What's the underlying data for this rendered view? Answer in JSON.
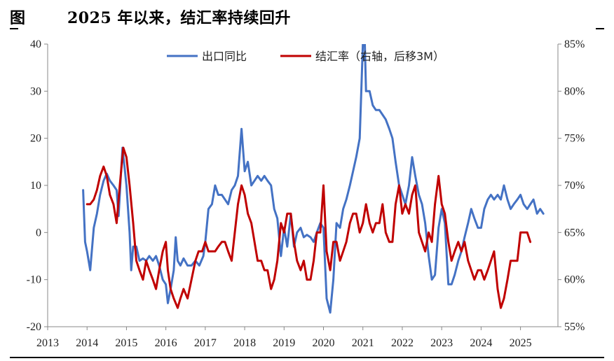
{
  "header": {
    "figure_label": "图",
    "title": "2025 年以来，结汇率持续回升"
  },
  "colors": {
    "series1": "#4472C4",
    "series2": "#C00000",
    "axis": "#888888",
    "text": "#222222"
  },
  "chart_data": {
    "type": "line",
    "title": "2025 年以来，结汇率持续回升",
    "x_ticks": [
      "2013",
      "2014",
      "2015",
      "2016",
      "2017",
      "2018",
      "2019",
      "2020",
      "2021",
      "2022",
      "2023",
      "2024",
      "2025"
    ],
    "xlim": [
      2013.0,
      2025.95
    ],
    "y_left": {
      "lim": [
        -20,
        40
      ],
      "ticks": [
        "40",
        "30",
        "20",
        "10",
        "0",
        "-10",
        "-20"
      ]
    },
    "y_right": {
      "lim": [
        55,
        85
      ],
      "ticks": [
        "85%",
        "80%",
        "75%",
        "70%",
        "65%",
        "60%",
        "55%"
      ]
    },
    "grid": false,
    "legend": "top-center",
    "series": [
      {
        "name": "出口同比",
        "axis": "left",
        "color": "#4472C4",
        "points": [
          [
            2013.9,
            9
          ],
          [
            2013.95,
            -2
          ],
          [
            2014.0,
            -4
          ],
          [
            2014.08,
            -8
          ],
          [
            2014.17,
            1
          ],
          [
            2014.25,
            4
          ],
          [
            2014.33,
            8
          ],
          [
            2014.42,
            11
          ],
          [
            2014.5,
            12.5
          ],
          [
            2014.58,
            11
          ],
          [
            2014.67,
            10
          ],
          [
            2014.75,
            9
          ],
          [
            2014.8,
            3.5
          ],
          [
            2014.85,
            11
          ],
          [
            2014.9,
            18
          ],
          [
            2014.95,
            14
          ],
          [
            2015.0,
            10
          ],
          [
            2015.08,
            0
          ],
          [
            2015.12,
            -8
          ],
          [
            2015.17,
            -3
          ],
          [
            2015.25,
            -3
          ],
          [
            2015.33,
            -6
          ],
          [
            2015.42,
            -5.5
          ],
          [
            2015.5,
            -6
          ],
          [
            2015.58,
            -5
          ],
          [
            2015.67,
            -6
          ],
          [
            2015.75,
            -5
          ],
          [
            2015.83,
            -7
          ],
          [
            2015.92,
            -10
          ],
          [
            2016.0,
            -11
          ],
          [
            2016.05,
            -15
          ],
          [
            2016.12,
            -12
          ],
          [
            2016.2,
            -8
          ],
          [
            2016.25,
            -1
          ],
          [
            2016.3,
            -6
          ],
          [
            2016.37,
            -7
          ],
          [
            2016.45,
            -5.5
          ],
          [
            2016.55,
            -7
          ],
          [
            2016.65,
            -7
          ],
          [
            2016.75,
            -6
          ],
          [
            2016.85,
            -7
          ],
          [
            2016.95,
            -5
          ],
          [
            2017.0,
            -2
          ],
          [
            2017.08,
            5
          ],
          [
            2017.17,
            6
          ],
          [
            2017.25,
            10
          ],
          [
            2017.33,
            8
          ],
          [
            2017.42,
            8
          ],
          [
            2017.5,
            7
          ],
          [
            2017.58,
            6
          ],
          [
            2017.67,
            9
          ],
          [
            2017.75,
            10
          ],
          [
            2017.83,
            12
          ],
          [
            2017.92,
            22
          ],
          [
            2018.0,
            13
          ],
          [
            2018.08,
            15
          ],
          [
            2018.17,
            10
          ],
          [
            2018.25,
            11
          ],
          [
            2018.33,
            12
          ],
          [
            2018.42,
            11
          ],
          [
            2018.5,
            12
          ],
          [
            2018.58,
            11
          ],
          [
            2018.67,
            10
          ],
          [
            2018.75,
            5
          ],
          [
            2018.83,
            3
          ],
          [
            2018.92,
            -5
          ],
          [
            2019.0,
            1
          ],
          [
            2019.08,
            -3
          ],
          [
            2019.17,
            4
          ],
          [
            2019.25,
            -3
          ],
          [
            2019.33,
            0
          ],
          [
            2019.42,
            1
          ],
          [
            2019.5,
            -1
          ],
          [
            2019.58,
            -0.5
          ],
          [
            2019.67,
            -1
          ],
          [
            2019.75,
            -2
          ],
          [
            2019.83,
            0
          ],
          [
            2019.92,
            2
          ],
          [
            2020.0,
            1
          ],
          [
            2020.08,
            -14
          ],
          [
            2020.17,
            -17
          ],
          [
            2020.25,
            -10
          ],
          [
            2020.33,
            2
          ],
          [
            2020.42,
            1
          ],
          [
            2020.5,
            5
          ],
          [
            2020.58,
            7
          ],
          [
            2020.67,
            10
          ],
          [
            2020.75,
            13
          ],
          [
            2020.83,
            16
          ],
          [
            2020.92,
            20
          ],
          [
            2021.0,
            40
          ],
          [
            2021.05,
            40
          ],
          [
            2021.08,
            30
          ],
          [
            2021.17,
            30
          ],
          [
            2021.25,
            27
          ],
          [
            2021.33,
            26
          ],
          [
            2021.42,
            26
          ],
          [
            2021.5,
            25
          ],
          [
            2021.58,
            24
          ],
          [
            2021.67,
            22
          ],
          [
            2021.75,
            20
          ],
          [
            2021.83,
            15
          ],
          [
            2021.92,
            10
          ],
          [
            2022.0,
            8
          ],
          [
            2022.08,
            6
          ],
          [
            2022.17,
            10
          ],
          [
            2022.25,
            16
          ],
          [
            2022.33,
            12
          ],
          [
            2022.42,
            8
          ],
          [
            2022.5,
            6
          ],
          [
            2022.58,
            2
          ],
          [
            2022.67,
            -5
          ],
          [
            2022.75,
            -10
          ],
          [
            2022.83,
            -9
          ],
          [
            2022.92,
            1
          ],
          [
            2023.0,
            5
          ],
          [
            2023.08,
            2
          ],
          [
            2023.17,
            -11
          ],
          [
            2023.25,
            -11
          ],
          [
            2023.33,
            -9
          ],
          [
            2023.42,
            -6
          ],
          [
            2023.5,
            -4
          ],
          [
            2023.58,
            -1
          ],
          [
            2023.67,
            2
          ],
          [
            2023.75,
            5
          ],
          [
            2023.83,
            3
          ],
          [
            2023.92,
            1
          ],
          [
            2024.0,
            1
          ],
          [
            2024.08,
            5
          ],
          [
            2024.17,
            7
          ],
          [
            2024.25,
            8
          ],
          [
            2024.33,
            7
          ],
          [
            2024.42,
            8
          ],
          [
            2024.5,
            7
          ],
          [
            2024.58,
            10
          ],
          [
            2024.67,
            7
          ],
          [
            2024.75,
            5
          ],
          [
            2024.83,
            6
          ],
          [
            2024.92,
            7
          ],
          [
            2025.0,
            8
          ],
          [
            2025.08,
            6
          ],
          [
            2025.17,
            5
          ],
          [
            2025.25,
            6
          ],
          [
            2025.33,
            7
          ],
          [
            2025.42,
            4
          ],
          [
            2025.5,
            5
          ],
          [
            2025.58,
            4
          ]
        ]
      },
      {
        "name": "结汇率（右轴，后移3M）",
        "axis": "right",
        "color": "#C00000",
        "points": [
          [
            2014.0,
            68
          ],
          [
            2014.08,
            68
          ],
          [
            2014.17,
            68.5
          ],
          [
            2014.25,
            69.5
          ],
          [
            2014.33,
            71
          ],
          [
            2014.42,
            72
          ],
          [
            2014.5,
            71
          ],
          [
            2014.58,
            69
          ],
          [
            2014.67,
            68
          ],
          [
            2014.75,
            66
          ],
          [
            2014.83,
            70
          ],
          [
            2014.92,
            74
          ],
          [
            2015.0,
            73
          ],
          [
            2015.08,
            70
          ],
          [
            2015.17,
            66
          ],
          [
            2015.25,
            62
          ],
          [
            2015.33,
            61
          ],
          [
            2015.42,
            60
          ],
          [
            2015.5,
            62
          ],
          [
            2015.58,
            61
          ],
          [
            2015.67,
            60
          ],
          [
            2015.75,
            59
          ],
          [
            2015.83,
            61
          ],
          [
            2015.92,
            63
          ],
          [
            2016.0,
            64
          ],
          [
            2016.05,
            61
          ],
          [
            2016.12,
            59
          ],
          [
            2016.2,
            58
          ],
          [
            2016.3,
            57
          ],
          [
            2016.37,
            58
          ],
          [
            2016.45,
            59
          ],
          [
            2016.55,
            58
          ],
          [
            2016.65,
            60
          ],
          [
            2016.75,
            62
          ],
          [
            2016.83,
            63
          ],
          [
            2016.92,
            63
          ],
          [
            2017.0,
            64
          ],
          [
            2017.08,
            63
          ],
          [
            2017.17,
            63
          ],
          [
            2017.25,
            63
          ],
          [
            2017.33,
            63.5
          ],
          [
            2017.42,
            64
          ],
          [
            2017.5,
            64
          ],
          [
            2017.58,
            63
          ],
          [
            2017.67,
            62
          ],
          [
            2017.75,
            65
          ],
          [
            2017.83,
            68
          ],
          [
            2017.92,
            70
          ],
          [
            2018.0,
            69
          ],
          [
            2018.08,
            67
          ],
          [
            2018.17,
            66
          ],
          [
            2018.25,
            64
          ],
          [
            2018.33,
            62
          ],
          [
            2018.42,
            62
          ],
          [
            2018.5,
            61
          ],
          [
            2018.58,
            61
          ],
          [
            2018.67,
            59
          ],
          [
            2018.75,
            60
          ],
          [
            2018.83,
            62
          ],
          [
            2018.92,
            66
          ],
          [
            2019.0,
            65
          ],
          [
            2019.08,
            67
          ],
          [
            2019.17,
            67
          ],
          [
            2019.25,
            64
          ],
          [
            2019.33,
            62
          ],
          [
            2019.42,
            61
          ],
          [
            2019.5,
            62
          ],
          [
            2019.58,
            60
          ],
          [
            2019.67,
            60
          ],
          [
            2019.75,
            62
          ],
          [
            2019.83,
            65
          ],
          [
            2019.92,
            65
          ],
          [
            2020.0,
            70
          ],
          [
            2020.08,
            63
          ],
          [
            2020.17,
            61
          ],
          [
            2020.25,
            64
          ],
          [
            2020.33,
            64
          ],
          [
            2020.42,
            62
          ],
          [
            2020.5,
            63
          ],
          [
            2020.58,
            64
          ],
          [
            2020.67,
            66
          ],
          [
            2020.75,
            67
          ],
          [
            2020.83,
            67
          ],
          [
            2020.92,
            65
          ],
          [
            2021.0,
            66
          ],
          [
            2021.08,
            68
          ],
          [
            2021.17,
            66
          ],
          [
            2021.25,
            65
          ],
          [
            2021.33,
            66
          ],
          [
            2021.42,
            66
          ],
          [
            2021.5,
            68
          ],
          [
            2021.58,
            65
          ],
          [
            2021.67,
            64
          ],
          [
            2021.75,
            64
          ],
          [
            2021.83,
            68
          ],
          [
            2021.92,
            70
          ],
          [
            2022.0,
            67
          ],
          [
            2022.08,
            68
          ],
          [
            2022.17,
            67
          ],
          [
            2022.25,
            69
          ],
          [
            2022.33,
            70
          ],
          [
            2022.42,
            65
          ],
          [
            2022.5,
            64
          ],
          [
            2022.58,
            63
          ],
          [
            2022.67,
            65
          ],
          [
            2022.75,
            64
          ],
          [
            2022.83,
            68
          ],
          [
            2022.92,
            71
          ],
          [
            2023.0,
            68
          ],
          [
            2023.08,
            67
          ],
          [
            2023.17,
            64
          ],
          [
            2023.25,
            62
          ],
          [
            2023.33,
            63
          ],
          [
            2023.42,
            64
          ],
          [
            2023.5,
            63
          ],
          [
            2023.58,
            64
          ],
          [
            2023.67,
            62
          ],
          [
            2023.75,
            61
          ],
          [
            2023.83,
            60
          ],
          [
            2023.92,
            61
          ],
          [
            2024.0,
            61
          ],
          [
            2024.08,
            60
          ],
          [
            2024.17,
            61
          ],
          [
            2024.25,
            62
          ],
          [
            2024.33,
            63
          ],
          [
            2024.42,
            59
          ],
          [
            2024.5,
            57
          ],
          [
            2024.58,
            58
          ],
          [
            2024.67,
            60
          ],
          [
            2024.75,
            62
          ],
          [
            2024.83,
            62
          ],
          [
            2024.92,
            62
          ],
          [
            2025.0,
            65
          ],
          [
            2025.08,
            65
          ],
          [
            2025.17,
            65
          ],
          [
            2025.25,
            64
          ]
        ]
      }
    ]
  }
}
